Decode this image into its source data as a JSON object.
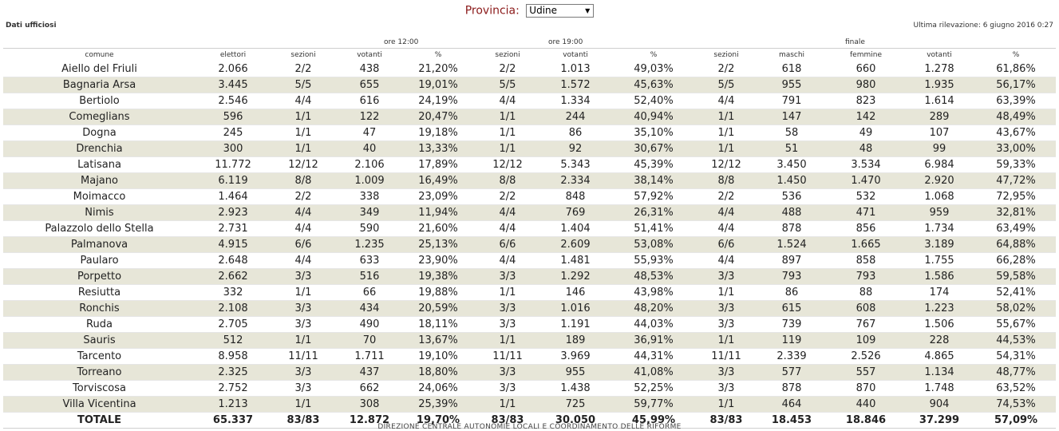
{
  "header": {
    "provincia_label": "Provincia:",
    "provincia_value": "Udine",
    "dati_label": "Dati ufficiosi",
    "ultima_rilevazione": "Ultima rilevazione: 6 giugno 2016 0:27"
  },
  "groups": {
    "ore12": "ore 12:00",
    "ore19": "ore 19:00",
    "finale": "finale"
  },
  "columns": [
    "comune",
    "elettori",
    "sezioni",
    "votanti",
    "%",
    "sezioni",
    "votanti",
    "%",
    "sezioni",
    "maschi",
    "femmine",
    "votanti",
    "%"
  ],
  "rows": [
    [
      "Aiello del Friuli",
      "2.066",
      "2/2",
      "438",
      "21,20%",
      "2/2",
      "1.013",
      "49,03%",
      "2/2",
      "618",
      "660",
      "1.278",
      "61,86%"
    ],
    [
      "Bagnaria Arsa",
      "3.445",
      "5/5",
      "655",
      "19,01%",
      "5/5",
      "1.572",
      "45,63%",
      "5/5",
      "955",
      "980",
      "1.935",
      "56,17%"
    ],
    [
      "Bertiolo",
      "2.546",
      "4/4",
      "616",
      "24,19%",
      "4/4",
      "1.334",
      "52,40%",
      "4/4",
      "791",
      "823",
      "1.614",
      "63,39%"
    ],
    [
      "Comeglians",
      "596",
      "1/1",
      "122",
      "20,47%",
      "1/1",
      "244",
      "40,94%",
      "1/1",
      "147",
      "142",
      "289",
      "48,49%"
    ],
    [
      "Dogna",
      "245",
      "1/1",
      "47",
      "19,18%",
      "1/1",
      "86",
      "35,10%",
      "1/1",
      "58",
      "49",
      "107",
      "43,67%"
    ],
    [
      "Drenchia",
      "300",
      "1/1",
      "40",
      "13,33%",
      "1/1",
      "92",
      "30,67%",
      "1/1",
      "51",
      "48",
      "99",
      "33,00%"
    ],
    [
      "Latisana",
      "11.772",
      "12/12",
      "2.106",
      "17,89%",
      "12/12",
      "5.343",
      "45,39%",
      "12/12",
      "3.450",
      "3.534",
      "6.984",
      "59,33%"
    ],
    [
      "Majano",
      "6.119",
      "8/8",
      "1.009",
      "16,49%",
      "8/8",
      "2.334",
      "38,14%",
      "8/8",
      "1.450",
      "1.470",
      "2.920",
      "47,72%"
    ],
    [
      "Moimacco",
      "1.464",
      "2/2",
      "338",
      "23,09%",
      "2/2",
      "848",
      "57,92%",
      "2/2",
      "536",
      "532",
      "1.068",
      "72,95%"
    ],
    [
      "Nimis",
      "2.923",
      "4/4",
      "349",
      "11,94%",
      "4/4",
      "769",
      "26,31%",
      "4/4",
      "488",
      "471",
      "959",
      "32,81%"
    ],
    [
      "Palazzolo dello Stella",
      "2.731",
      "4/4",
      "590",
      "21,60%",
      "4/4",
      "1.404",
      "51,41%",
      "4/4",
      "878",
      "856",
      "1.734",
      "63,49%"
    ],
    [
      "Palmanova",
      "4.915",
      "6/6",
      "1.235",
      "25,13%",
      "6/6",
      "2.609",
      "53,08%",
      "6/6",
      "1.524",
      "1.665",
      "3.189",
      "64,88%"
    ],
    [
      "Paularo",
      "2.648",
      "4/4",
      "633",
      "23,90%",
      "4/4",
      "1.481",
      "55,93%",
      "4/4",
      "897",
      "858",
      "1.755",
      "66,28%"
    ],
    [
      "Porpetto",
      "2.662",
      "3/3",
      "516",
      "19,38%",
      "3/3",
      "1.292",
      "48,53%",
      "3/3",
      "793",
      "793",
      "1.586",
      "59,58%"
    ],
    [
      "Resiutta",
      "332",
      "1/1",
      "66",
      "19,88%",
      "1/1",
      "146",
      "43,98%",
      "1/1",
      "86",
      "88",
      "174",
      "52,41%"
    ],
    [
      "Ronchis",
      "2.108",
      "3/3",
      "434",
      "20,59%",
      "3/3",
      "1.016",
      "48,20%",
      "3/3",
      "615",
      "608",
      "1.223",
      "58,02%"
    ],
    [
      "Ruda",
      "2.705",
      "3/3",
      "490",
      "18,11%",
      "3/3",
      "1.191",
      "44,03%",
      "3/3",
      "739",
      "767",
      "1.506",
      "55,67%"
    ],
    [
      "Sauris",
      "512",
      "1/1",
      "70",
      "13,67%",
      "1/1",
      "189",
      "36,91%",
      "1/1",
      "119",
      "109",
      "228",
      "44,53%"
    ],
    [
      "Tarcento",
      "8.958",
      "11/11",
      "1.711",
      "19,10%",
      "11/11",
      "3.969",
      "44,31%",
      "11/11",
      "2.339",
      "2.526",
      "4.865",
      "54,31%"
    ],
    [
      "Torreano",
      "2.325",
      "3/3",
      "437",
      "18,80%",
      "3/3",
      "955",
      "41,08%",
      "3/3",
      "577",
      "557",
      "1.134",
      "48,77%"
    ],
    [
      "Torviscosa",
      "2.752",
      "3/3",
      "662",
      "24,06%",
      "3/3",
      "1.438",
      "52,25%",
      "3/3",
      "878",
      "870",
      "1.748",
      "63,52%"
    ],
    [
      "Villa Vicentina",
      "1.213",
      "1/1",
      "308",
      "25,39%",
      "1/1",
      "725",
      "59,77%",
      "1/1",
      "464",
      "440",
      "904",
      "74,53%"
    ]
  ],
  "total": [
    "TOTALE",
    "65.337",
    "83/83",
    "12.872",
    "19,70%",
    "83/83",
    "30.050",
    "45,99%",
    "83/83",
    "18.453",
    "18.846",
    "37.299",
    "57,09%"
  ],
  "footer": "DIREZIONE CENTRALE AUTONOMIE LOCALI E COORDINAMENTO DELLE RIFORME"
}
